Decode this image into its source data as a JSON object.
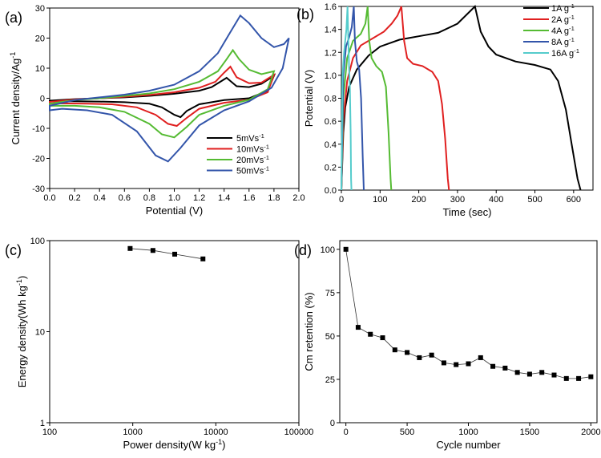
{
  "chart_data": [
    {
      "panel": "(a)",
      "type": "line",
      "xlabel": "Potential (V)",
      "ylabel": "Current density/Ag-1",
      "xlim": [
        0.0,
        2.0
      ],
      "ylim": [
        -30,
        30
      ],
      "xticks": [
        "0.0",
        "0.2",
        "0.4",
        "0.6",
        "0.8",
        "1.0",
        "1.2",
        "1.4",
        "1.6",
        "1.8",
        "2.0"
      ],
      "yticks": [
        "-30",
        "-20",
        "-10",
        "0",
        "10",
        "20",
        "30"
      ],
      "legend": "bottom-right",
      "series": [
        {
          "name": "5mVs-1",
          "color": "#000000",
          "upper": [
            [
              0.0,
              -0.8
            ],
            [
              0.2,
              -0.3
            ],
            [
              0.4,
              0.0
            ],
            [
              0.6,
              0.3
            ],
            [
              0.8,
              0.8
            ],
            [
              1.0,
              1.5
            ],
            [
              1.2,
              2.5
            ],
            [
              1.3,
              3.7
            ],
            [
              1.37,
              5.5
            ],
            [
              1.42,
              6.8
            ],
            [
              1.46,
              5.4
            ],
            [
              1.5,
              4.0
            ],
            [
              1.6,
              3.7
            ],
            [
              1.7,
              4.8
            ],
            [
              1.8,
              7.5
            ]
          ],
          "lower": [
            [
              1.8,
              7.5
            ],
            [
              1.75,
              2.5
            ],
            [
              1.6,
              0.0
            ],
            [
              1.4,
              -0.6
            ],
            [
              1.2,
              -2.0
            ],
            [
              1.1,
              -4.2
            ],
            [
              1.05,
              -6.3
            ],
            [
              1.0,
              -5.5
            ],
            [
              0.9,
              -3.0
            ],
            [
              0.8,
              -1.8
            ],
            [
              0.6,
              -1.3
            ],
            [
              0.4,
              -1.1
            ],
            [
              0.2,
              -1.0
            ],
            [
              0.0,
              -1.0
            ]
          ]
        },
        {
          "name": "10mVs-1",
          "color": "#e02020",
          "upper": [
            [
              0.0,
              -1.2
            ],
            [
              0.2,
              -0.4
            ],
            [
              0.4,
              0.0
            ],
            [
              0.6,
              0.5
            ],
            [
              0.8,
              1.1
            ],
            [
              1.0,
              2.0
            ],
            [
              1.2,
              3.5
            ],
            [
              1.33,
              5.5
            ],
            [
              1.4,
              8.5
            ],
            [
              1.45,
              10.5
            ],
            [
              1.5,
              7.0
            ],
            [
              1.6,
              5.0
            ],
            [
              1.7,
              5.2
            ],
            [
              1.8,
              7.8
            ]
          ],
          "lower": [
            [
              1.8,
              7.8
            ],
            [
              1.75,
              2.0
            ],
            [
              1.6,
              -0.5
            ],
            [
              1.4,
              -1.5
            ],
            [
              1.2,
              -3.5
            ],
            [
              1.1,
              -6.5
            ],
            [
              1.02,
              -9.2
            ],
            [
              0.95,
              -8.5
            ],
            [
              0.85,
              -5.5
            ],
            [
              0.7,
              -3.0
            ],
            [
              0.5,
              -2.0
            ],
            [
              0.3,
              -1.8
            ],
            [
              0.1,
              -1.7
            ],
            [
              0.0,
              -1.8
            ]
          ]
        },
        {
          "name": "20mVs-1",
          "color": "#55bb33",
          "upper": [
            [
              0.0,
              -1.8
            ],
            [
              0.2,
              -0.6
            ],
            [
              0.4,
              0.0
            ],
            [
              0.6,
              0.8
            ],
            [
              0.8,
              1.6
            ],
            [
              1.0,
              3.0
            ],
            [
              1.2,
              5.5
            ],
            [
              1.35,
              9.0
            ],
            [
              1.42,
              13.0
            ],
            [
              1.47,
              16.0
            ],
            [
              1.52,
              13.0
            ],
            [
              1.6,
              9.5
            ],
            [
              1.7,
              8.0
            ],
            [
              1.8,
              9.0
            ]
          ],
          "lower": [
            [
              1.8,
              9.0
            ],
            [
              1.75,
              3.0
            ],
            [
              1.6,
              -0.5
            ],
            [
              1.4,
              -2.5
            ],
            [
              1.2,
              -5.5
            ],
            [
              1.1,
              -9.5
            ],
            [
              1.0,
              -13.0
            ],
            [
              0.9,
              -12.0
            ],
            [
              0.8,
              -8.5
            ],
            [
              0.6,
              -4.5
            ],
            [
              0.4,
              -3.0
            ],
            [
              0.2,
              -2.5
            ],
            [
              0.0,
              -2.5
            ]
          ]
        },
        {
          "name": "50mVs-1",
          "color": "#3355aa",
          "upper": [
            [
              0.0,
              -2.5
            ],
            [
              0.2,
              -0.6
            ],
            [
              0.4,
              0.3
            ],
            [
              0.6,
              1.2
            ],
            [
              0.8,
              2.5
            ],
            [
              1.0,
              4.5
            ],
            [
              1.2,
              9.0
            ],
            [
              1.35,
              15.0
            ],
            [
              1.45,
              22.0
            ],
            [
              1.53,
              27.5
            ],
            [
              1.6,
              25.0
            ],
            [
              1.7,
              20.0
            ],
            [
              1.8,
              17.0
            ],
            [
              1.88,
              18.0
            ],
            [
              1.92,
              20.0
            ]
          ],
          "lower": [
            [
              1.92,
              20.0
            ],
            [
              1.87,
              10.0
            ],
            [
              1.78,
              3.5
            ],
            [
              1.6,
              -1.0
            ],
            [
              1.4,
              -4.0
            ],
            [
              1.2,
              -9.0
            ],
            [
              1.05,
              -16.5
            ],
            [
              0.95,
              -21.0
            ],
            [
              0.85,
              -19.0
            ],
            [
              0.7,
              -11.0
            ],
            [
              0.5,
              -5.5
            ],
            [
              0.3,
              -4.0
            ],
            [
              0.1,
              -3.5
            ],
            [
              0.0,
              -4.0
            ]
          ]
        }
      ]
    },
    {
      "panel": "(b)",
      "type": "line",
      "xlabel": "Time (sec)",
      "ylabel": "Potential (V)",
      "xlim": [
        0,
        650
      ],
      "ylim": [
        0.0,
        1.6
      ],
      "xticks": [
        "0",
        "100",
        "200",
        "300",
        "400",
        "500",
        "600"
      ],
      "yticks": [
        "0.0",
        "0.2",
        "0.4",
        "0.6",
        "0.8",
        "1.0",
        "1.2",
        "1.4",
        "1.6"
      ],
      "legend": "top-right",
      "series": [
        {
          "name": "1A g-1",
          "color": "#000000",
          "points": [
            [
              0,
              0
            ],
            [
              5,
              0.5
            ],
            [
              10,
              0.72
            ],
            [
              20,
              0.9
            ],
            [
              40,
              1.05
            ],
            [
              70,
              1.17
            ],
            [
              100,
              1.25
            ],
            [
              150,
              1.31
            ],
            [
              200,
              1.34
            ],
            [
              250,
              1.37
            ],
            [
              300,
              1.45
            ],
            [
              345,
              1.6
            ],
            [
              360,
              1.38
            ],
            [
              380,
              1.25
            ],
            [
              400,
              1.18
            ],
            [
              450,
              1.12
            ],
            [
              500,
              1.09
            ],
            [
              540,
              1.05
            ],
            [
              560,
              0.95
            ],
            [
              580,
              0.7
            ],
            [
              595,
              0.4
            ],
            [
              610,
              0.1
            ],
            [
              618,
              0.0
            ]
          ]
        },
        {
          "name": "2A g-1",
          "color": "#e02020",
          "points": [
            [
              0,
              0
            ],
            [
              5,
              0.6
            ],
            [
              15,
              0.95
            ],
            [
              30,
              1.15
            ],
            [
              50,
              1.26
            ],
            [
              80,
              1.32
            ],
            [
              110,
              1.38
            ],
            [
              130,
              1.45
            ],
            [
              145,
              1.52
            ],
            [
              155,
              1.6
            ],
            [
              162,
              1.3
            ],
            [
              170,
              1.15
            ],
            [
              185,
              1.1
            ],
            [
              210,
              1.08
            ],
            [
              235,
              1.03
            ],
            [
              250,
              0.95
            ],
            [
              260,
              0.75
            ],
            [
              268,
              0.45
            ],
            [
              275,
              0.1
            ],
            [
              278,
              0.0
            ]
          ]
        },
        {
          "name": "4A g-1",
          "color": "#55bb33",
          "points": [
            [
              0,
              0
            ],
            [
              5,
              0.8
            ],
            [
              15,
              1.15
            ],
            [
              30,
              1.3
            ],
            [
              50,
              1.36
            ],
            [
              62,
              1.45
            ],
            [
              68,
              1.6
            ],
            [
              72,
              1.3
            ],
            [
              78,
              1.15
            ],
            [
              90,
              1.08
            ],
            [
              105,
              1.03
            ],
            [
              115,
              0.9
            ],
            [
              122,
              0.5
            ],
            [
              127,
              0.1
            ],
            [
              129,
              0.0
            ]
          ]
        },
        {
          "name": "8A g-1",
          "color": "#3355aa",
          "points": [
            [
              0,
              0
            ],
            [
              5,
              1.0
            ],
            [
              12,
              1.25
            ],
            [
              20,
              1.33
            ],
            [
              27,
              1.42
            ],
            [
              32,
              1.6
            ],
            [
              35,
              1.3
            ],
            [
              40,
              1.12
            ],
            [
              46,
              1.05
            ],
            [
              51,
              0.8
            ],
            [
              55,
              0.3
            ],
            [
              58,
              0.0
            ]
          ]
        },
        {
          "name": "16A g-1",
          "color": "#55cccc",
          "points": [
            [
              0,
              0
            ],
            [
              3,
              1.0
            ],
            [
              7,
              1.2
            ],
            [
              10,
              1.3
            ],
            [
              13,
              1.4
            ],
            [
              16,
              1.6
            ],
            [
              18,
              1.3
            ],
            [
              20,
              1.05
            ],
            [
              22,
              0.9
            ],
            [
              24,
              0.5
            ],
            [
              25,
              0.1
            ],
            [
              26,
              0.0
            ]
          ]
        }
      ]
    },
    {
      "panel": "(c)",
      "type": "scatter",
      "xlabel": "Power density(W kg-1)",
      "ylabel": "Energy density(Wh kg-1)",
      "xscale": "log",
      "yscale": "log",
      "xlim": [
        100,
        100000
      ],
      "ylim": [
        1,
        100
      ],
      "xticks": [
        "100",
        "1000",
        "10000",
        "100000"
      ],
      "yticks": [
        "1",
        "10",
        "100"
      ],
      "series": [
        {
          "name": "",
          "color": "#000000",
          "points": [
            [
              930,
              82
            ],
            [
              1750,
              78
            ],
            [
              3200,
              71
            ],
            [
              7000,
              63
            ]
          ]
        }
      ]
    },
    {
      "panel": "(d)",
      "type": "scatter",
      "xlabel": "Cycle number",
      "ylabel": "Cm retention (%)",
      "xlim": [
        -50,
        2050
      ],
      "ylim": [
        0,
        105
      ],
      "xticks": [
        "0",
        "500",
        "1000",
        "1500",
        "2000"
      ],
      "yticks": [
        "0",
        "25",
        "50",
        "75",
        "100"
      ],
      "series": [
        {
          "name": "",
          "color": "#000000",
          "points": [
            [
              0,
              100
            ],
            [
              100,
              55
            ],
            [
              200,
              51
            ],
            [
              300,
              49
            ],
            [
              400,
              42
            ],
            [
              500,
              40.5
            ],
            [
              600,
              37.5
            ],
            [
              700,
              39
            ],
            [
              800,
              34.5
            ],
            [
              900,
              33.5
            ],
            [
              1000,
              34
            ],
            [
              1100,
              37.5
            ],
            [
              1200,
              32.5
            ],
            [
              1300,
              31.5
            ],
            [
              1400,
              29
            ],
            [
              1500,
              28
            ],
            [
              1600,
              29
            ],
            [
              1700,
              27.5
            ],
            [
              1800,
              25.5
            ],
            [
              1900,
              25.5
            ],
            [
              2000,
              26.5
            ]
          ]
        }
      ]
    }
  ]
}
